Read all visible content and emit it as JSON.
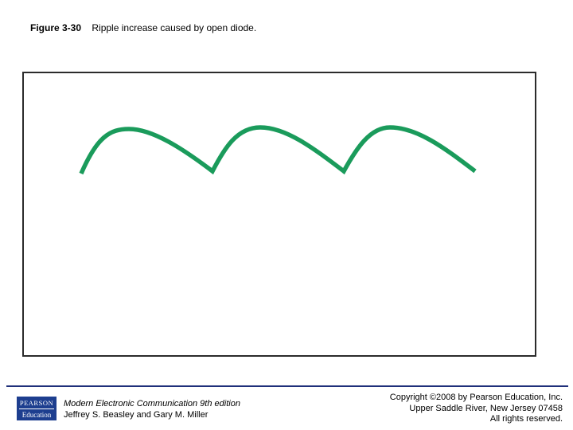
{
  "caption": {
    "figure_label": "Figure 3-30",
    "text": "Ripple increase caused by open diode."
  },
  "diagram": {
    "waveform_color": "#1a9b5b",
    "frame_color": "#2b2b2b"
  },
  "footer": {
    "logo": {
      "line1": "PEARSON",
      "line2": "Education",
      "color": "#1d3e8f"
    },
    "book_title": "Modern Electronic Communication 9th edition",
    "authors": "Jeffrey S. Beasley and Gary M. Miller",
    "copyright_lines": [
      "Copyright ©2008 by Pearson Education, Inc.",
      "Upper Saddle River, New Jersey 07458",
      "All rights reserved."
    ]
  }
}
